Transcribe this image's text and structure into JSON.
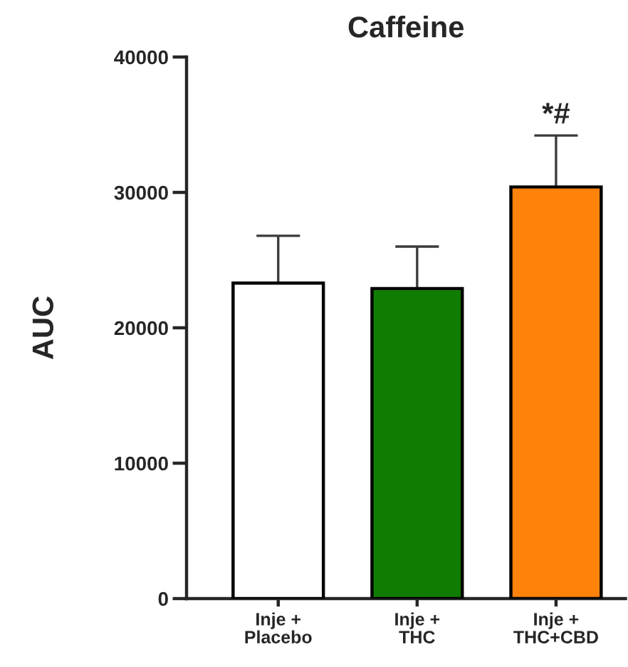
{
  "chart_data": {
    "type": "bar",
    "title": "Caffeine",
    "ylabel": "AUC",
    "categories": [
      "Inje +\nPlacebo",
      "Inje +\nTHC",
      "Inje +\nTHC+CBD"
    ],
    "values": [
      23300,
      22900,
      30400
    ],
    "errors": [
      3500,
      3100,
      3800
    ],
    "colors": [
      "#ffffff",
      "#117c02",
      "#ff820a"
    ],
    "ylim": [
      0,
      40000
    ],
    "yticks": [
      0,
      10000,
      20000,
      30000,
      40000
    ],
    "annotations": [
      {
        "text": "*#",
        "x": "Inje +\nTHC+CBD",
        "y": 34200
      }
    ]
  }
}
